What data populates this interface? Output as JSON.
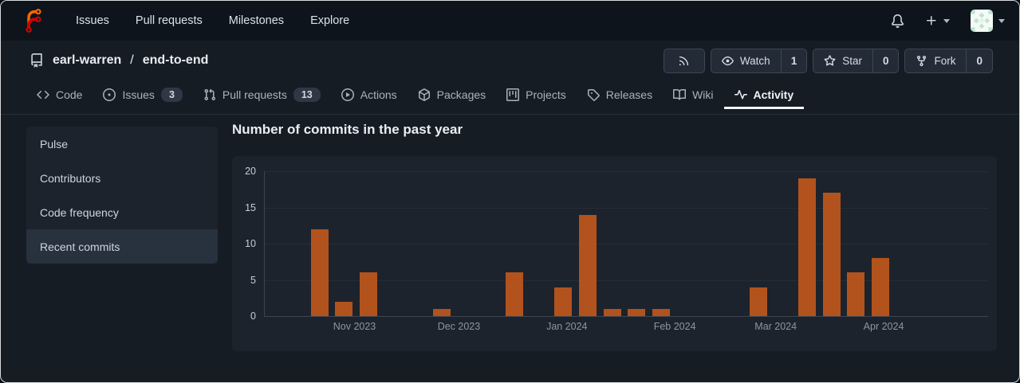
{
  "app": {
    "name": "Forgejo"
  },
  "navbar": {
    "links": [
      "Issues",
      "Pull requests",
      "Milestones",
      "Explore"
    ]
  },
  "repo_header": {
    "owner": "earl-warren",
    "separator": "/",
    "name": "end-to-end",
    "actions": {
      "watch": {
        "label": "Watch",
        "count": "1"
      },
      "star": {
        "label": "Star",
        "count": "0"
      },
      "fork": {
        "label": "Fork",
        "count": "0"
      }
    }
  },
  "tabs": [
    {
      "label": "Code"
    },
    {
      "label": "Issues",
      "badge": "3"
    },
    {
      "label": "Pull requests",
      "badge": "13"
    },
    {
      "label": "Actions"
    },
    {
      "label": "Packages"
    },
    {
      "label": "Projects"
    },
    {
      "label": "Releases"
    },
    {
      "label": "Wiki"
    },
    {
      "label": "Activity",
      "active": true
    }
  ],
  "sidebar": {
    "items": [
      {
        "label": "Pulse"
      },
      {
        "label": "Contributors"
      },
      {
        "label": "Code frequency"
      },
      {
        "label": "Recent commits",
        "active": true
      }
    ]
  },
  "main": {
    "title": "Number of commits in the past year"
  },
  "chart_data": {
    "type": "bar",
    "title": "Number of commits in the past year",
    "xlabel": "",
    "ylabel": "",
    "ylim": [
      0,
      20
    ],
    "y_ticks": [
      0,
      5,
      10,
      15,
      20
    ],
    "grid": true,
    "legend": false,
    "bar_color": "#b2521d",
    "x_axis": {
      "start": "2023-10-06",
      "end": "2024-05-01"
    },
    "month_labels": [
      {
        "label": "Nov 2023",
        "date": "2023-11-01"
      },
      {
        "label": "Dec 2023",
        "date": "2023-12-01"
      },
      {
        "label": "Jan 2024",
        "date": "2024-01-01"
      },
      {
        "label": "Feb 2024",
        "date": "2024-02-01"
      },
      {
        "label": "Mar 2024",
        "date": "2024-03-01"
      },
      {
        "label": "Apr 2024",
        "date": "2024-04-01"
      }
    ],
    "bars": [
      {
        "week": "2023-10-22",
        "value": 12
      },
      {
        "week": "2023-10-29",
        "value": 2
      },
      {
        "week": "2023-11-05",
        "value": 6
      },
      {
        "week": "2023-11-26",
        "value": 1
      },
      {
        "week": "2023-12-17",
        "value": 6
      },
      {
        "week": "2023-12-31",
        "value": 4
      },
      {
        "week": "2024-01-07",
        "value": 14
      },
      {
        "week": "2024-01-14",
        "value": 1
      },
      {
        "week": "2024-01-21",
        "value": 1
      },
      {
        "week": "2024-01-28",
        "value": 1
      },
      {
        "week": "2024-02-25",
        "value": 4
      },
      {
        "week": "2024-03-10",
        "value": 19
      },
      {
        "week": "2024-03-17",
        "value": 17
      },
      {
        "week": "2024-03-24",
        "value": 6
      },
      {
        "week": "2024-03-31",
        "value": 8
      }
    ]
  },
  "icons": {
    "logo": "forgejo-logo",
    "notifications": "bell-icon",
    "create_new": "plus-icon",
    "dropdown": "caret-down-icon",
    "repo": "repo-icon",
    "rss": "rss-icon",
    "watch": "eye-icon",
    "star": "star-icon",
    "fork": "git-fork-icon",
    "tab_icons": [
      "code-icon",
      "issue-opened-icon",
      "git-pull-request-icon",
      "play-circle-icon",
      "package-icon",
      "project-icon",
      "tag-icon",
      "book-icon",
      "pulse-icon"
    ]
  },
  "colors": {
    "navbar_bg": "#0e141b",
    "page_bg": "#161c24",
    "panel_bg": "#1c232d",
    "sidebar_active_bg": "#28313e",
    "bar_orange": "#b2521d",
    "logo_orange": "#ff6600",
    "logo_red": "#d40000",
    "text_primary": "#e7ecf2",
    "text_secondary": "#a9b2bd",
    "active_tab_underline": "#f4f7fa"
  }
}
